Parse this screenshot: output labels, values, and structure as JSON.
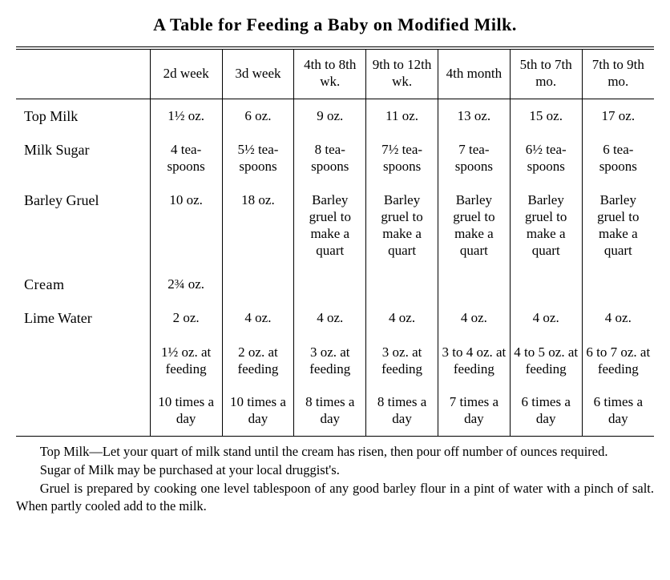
{
  "title": "A Table for Feeding a Baby on Modified Milk.",
  "columns": [
    "",
    "2d week",
    "3d week",
    "4th to 8th wk.",
    "9th to 12th wk.",
    "4th month",
    "5th to 7th mo.",
    "7th to 9th mo."
  ],
  "rows": [
    {
      "label": "Top Milk",
      "cells": [
        "1½ oz.",
        "6 oz.",
        "9 oz.",
        "11 oz.",
        "13 oz.",
        "15 oz.",
        "17 oz."
      ]
    },
    {
      "label": "Milk Sugar",
      "cells": [
        "4 tea-spoons",
        "5½ tea-spoons",
        "8 tea-spoons",
        "7½ tea-spoons",
        "7 tea-spoons",
        "6½ tea-spoons",
        "6 tea-spoons"
      ]
    },
    {
      "label": "Barley Gruel",
      "cells": [
        "10 oz.",
        "18 oz.",
        "Barley gruel to make a quart",
        "Barley gruel to make a quart",
        "Barley gruel to make a quart",
        "Barley gruel to make a quart",
        "Barley gruel to make a quart"
      ]
    },
    {
      "label": "Cream",
      "cells": [
        "2¾ oz.",
        "",
        "",
        "",
        "",
        "",
        ""
      ]
    },
    {
      "label": "Lime Water",
      "cells": [
        "2 oz.",
        "4 oz.",
        "4 oz.",
        "4 oz.",
        "4 oz.",
        "4 oz.",
        "4 oz."
      ]
    },
    {
      "label": "",
      "cells": [
        "1½ oz. at feeding",
        "2 oz. at feeding",
        "3 oz. at feeding",
        "3 oz. at feeding",
        "3 to 4 oz. at feeding",
        "4 to 5 oz. at feeding",
        "6 to 7 oz. at feeding"
      ]
    },
    {
      "label": "",
      "cells": [
        "10 times a day",
        "10 times a day",
        "8 times a day",
        "8 times a day",
        "7 times a day",
        "6 times a day",
        "6 times a day"
      ]
    }
  ],
  "notes": [
    "Top Milk—Let your quart of milk stand until the cream has risen, then pour off number of ounces required.",
    "Sugar of Milk may be purchased at your local druggist's.",
    "Gruel is prepared by cooking one level tablespoon of any good barley flour in a pint of water with a pinch of salt. When partly cooled add to the milk."
  ]
}
